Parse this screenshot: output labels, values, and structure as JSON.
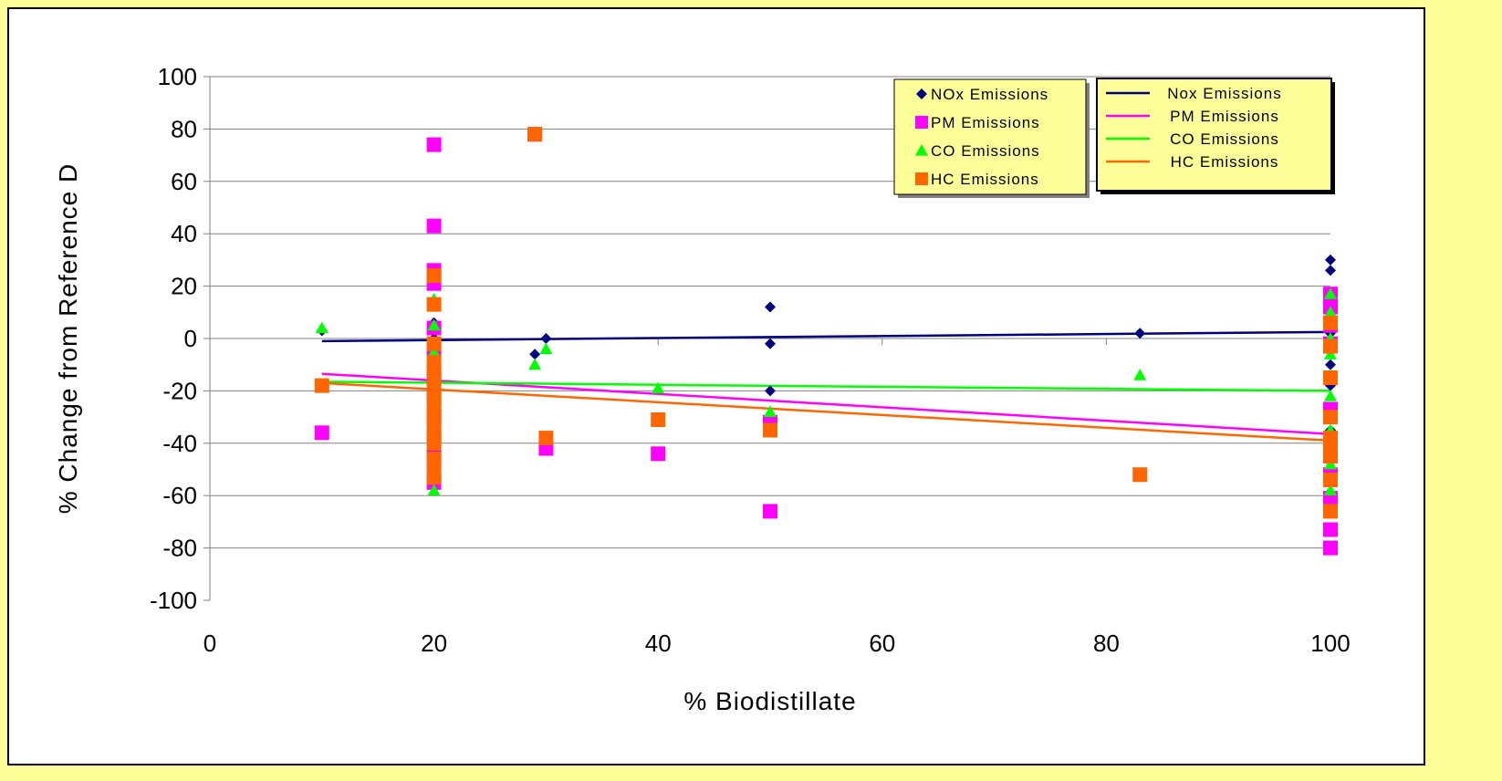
{
  "chart_data": {
    "type": "scatter",
    "title": "",
    "xlabel": "% Biodistillate",
    "ylabel": "% Change from Reference D",
    "xlim": [
      0,
      100
    ],
    "ylim": [
      -100,
      100
    ],
    "x_ticks": [
      "0",
      "20",
      "40",
      "60",
      "80",
      "100"
    ],
    "y_ticks": [
      "100",
      "80",
      "60",
      "40",
      "20",
      "0",
      "-20",
      "-40",
      "-60",
      "-80",
      "-100"
    ],
    "grid": "horizontal",
    "legends": {
      "markers_legend": [
        "NOx Emissions",
        "PM Emissions",
        "CO Emissions",
        "HC Emissions"
      ],
      "lines_legend": [
        "Nox Emissions",
        "PM Emissions",
        "CO Emissions",
        "HC Emissions"
      ],
      "placement": "top-right"
    },
    "series": [
      {
        "name": "NOx Emissions",
        "color": "#000080",
        "marker": "diamond",
        "points": [
          [
            10,
            3
          ],
          [
            20,
            6
          ],
          [
            20,
            3
          ],
          [
            20,
            0
          ],
          [
            20,
            -3
          ],
          [
            20,
            -6
          ],
          [
            20,
            -10
          ],
          [
            20,
            -15
          ],
          [
            20,
            -20
          ],
          [
            20,
            -25
          ],
          [
            20,
            -30
          ],
          [
            20,
            -40
          ],
          [
            20,
            -50
          ],
          [
            20,
            -57
          ],
          [
            29,
            -6
          ],
          [
            30,
            0
          ],
          [
            50,
            12
          ],
          [
            50,
            -2
          ],
          [
            50,
            -20
          ],
          [
            83,
            2
          ],
          [
            100,
            30
          ],
          [
            100,
            26
          ],
          [
            100,
            14
          ],
          [
            100,
            2
          ],
          [
            100,
            -10
          ],
          [
            100,
            -18
          ],
          [
            100,
            -35
          ],
          [
            100,
            -45
          ]
        ]
      },
      {
        "name": "PM Emissions",
        "color": "#ff00ff",
        "marker": "square",
        "points": [
          [
            10,
            -36
          ],
          [
            20,
            74
          ],
          [
            20,
            43
          ],
          [
            20,
            26
          ],
          [
            20,
            21
          ],
          [
            20,
            4
          ],
          [
            20,
            -5
          ],
          [
            20,
            -15
          ],
          [
            20,
            -22
          ],
          [
            20,
            -30
          ],
          [
            20,
            -38
          ],
          [
            20,
            -45
          ],
          [
            20,
            -55
          ],
          [
            29,
            78
          ],
          [
            30,
            -42
          ],
          [
            40,
            -44
          ],
          [
            50,
            -32
          ],
          [
            50,
            -66
          ],
          [
            100,
            17
          ],
          [
            100,
            12
          ],
          [
            100,
            5
          ],
          [
            100,
            -2
          ],
          [
            100,
            -15
          ],
          [
            100,
            -27
          ],
          [
            100,
            -40
          ],
          [
            100,
            -52
          ],
          [
            100,
            -61
          ],
          [
            100,
            -73
          ],
          [
            100,
            -80
          ]
        ]
      },
      {
        "name": "CO Emissions",
        "color": "#00ff00",
        "marker": "triangle",
        "points": [
          [
            10,
            4
          ],
          [
            20,
            15
          ],
          [
            20,
            5
          ],
          [
            20,
            -5
          ],
          [
            20,
            -10
          ],
          [
            20,
            -20
          ],
          [
            20,
            -30
          ],
          [
            20,
            -40
          ],
          [
            20,
            -58
          ],
          [
            29,
            -10
          ],
          [
            30,
            -4
          ],
          [
            40,
            -19
          ],
          [
            50,
            -28
          ],
          [
            83,
            -14
          ],
          [
            100,
            17
          ],
          [
            100,
            10
          ],
          [
            100,
            0
          ],
          [
            100,
            -6
          ],
          [
            100,
            -14
          ],
          [
            100,
            -22
          ],
          [
            100,
            -35
          ],
          [
            100,
            -48
          ],
          [
            100,
            -58
          ]
        ]
      },
      {
        "name": "HC Emissions",
        "color": "#ff6600",
        "marker": "square",
        "points": [
          [
            10,
            -18
          ],
          [
            20,
            24
          ],
          [
            20,
            13
          ],
          [
            20,
            -2
          ],
          [
            20,
            -9
          ],
          [
            20,
            -12
          ],
          [
            20,
            -15
          ],
          [
            20,
            -19
          ],
          [
            20,
            -23
          ],
          [
            20,
            -27
          ],
          [
            20,
            -30
          ],
          [
            20,
            -34
          ],
          [
            20,
            -37
          ],
          [
            20,
            -40
          ],
          [
            20,
            -46
          ],
          [
            20,
            -50
          ],
          [
            20,
            -53
          ],
          [
            29,
            78
          ],
          [
            30,
            -38
          ],
          [
            40,
            -31
          ],
          [
            50,
            -35
          ],
          [
            83,
            -52
          ],
          [
            100,
            6
          ],
          [
            100,
            -3
          ],
          [
            100,
            -15
          ],
          [
            100,
            -30
          ],
          [
            100,
            -38
          ],
          [
            100,
            -42
          ],
          [
            100,
            -45
          ],
          [
            100,
            -54
          ],
          [
            100,
            -66
          ]
        ]
      }
    ],
    "trendlines": [
      {
        "name": "Nox Emissions",
        "color": "#000080",
        "x": [
          10,
          100
        ],
        "y": [
          -1,
          2.5
        ]
      },
      {
        "name": "PM Emissions",
        "color": "#ff00ff",
        "x": [
          10,
          100
        ],
        "y": [
          -13.5,
          -36.5
        ]
      },
      {
        "name": "CO Emissions",
        "color": "#00ff00",
        "x": [
          10,
          100
        ],
        "y": [
          -16.5,
          -20
        ]
      },
      {
        "name": "HC Emissions",
        "color": "#ff6600",
        "x": [
          10,
          100
        ],
        "y": [
          -17,
          -39
        ]
      }
    ]
  }
}
